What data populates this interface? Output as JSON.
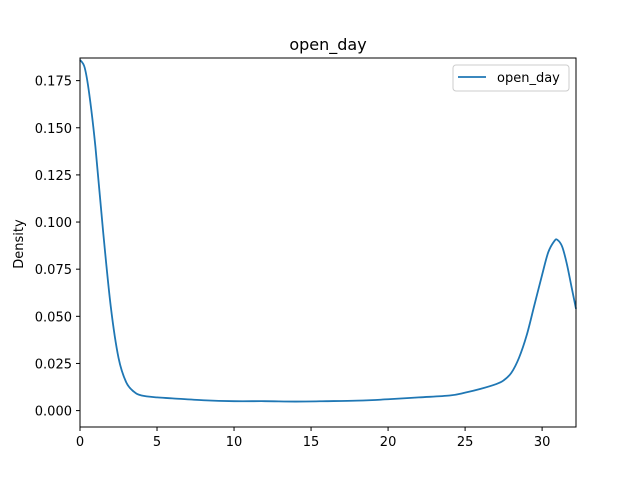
{
  "chart_data": {
    "type": "line",
    "title": "open_day",
    "xlabel": "",
    "ylabel": "Density",
    "xlim": [
      0,
      32.2
    ],
    "ylim": [
      -0.0087,
      0.187
    ],
    "xticks": [
      0,
      5,
      10,
      15,
      20,
      25,
      30
    ],
    "xtick_labels": [
      "0",
      "5",
      "10",
      "15",
      "20",
      "25",
      "30"
    ],
    "yticks": [
      0.0,
      0.025,
      0.05,
      0.075,
      0.1,
      0.125,
      0.15,
      0.175
    ],
    "ytick_labels": [
      "0.000",
      "0.025",
      "0.050",
      "0.075",
      "0.100",
      "0.125",
      "0.150",
      "0.175"
    ],
    "grid": false,
    "legend_position": "top-right",
    "series": [
      {
        "name": "open_day",
        "color": "#1f77b4",
        "x": [
          0,
          0.3,
          0.6,
          1.0,
          1.5,
          2.0,
          2.5,
          3.0,
          3.5,
          4.0,
          5.0,
          6.0,
          8.0,
          10.0,
          12.0,
          14.0,
          16.0,
          18.0,
          20.0,
          22.0,
          24.0,
          25.0,
          26.0,
          27.0,
          27.5,
          28.0,
          28.5,
          29.0,
          29.5,
          30.0,
          30.4,
          30.8,
          31.0,
          31.3,
          31.6,
          31.9,
          32.2
        ],
        "y": [
          0.186,
          0.182,
          0.168,
          0.14,
          0.095,
          0.055,
          0.028,
          0.015,
          0.01,
          0.008,
          0.007,
          0.0065,
          0.0055,
          0.005,
          0.005,
          0.0048,
          0.005,
          0.0053,
          0.006,
          0.007,
          0.008,
          0.0095,
          0.0115,
          0.014,
          0.016,
          0.02,
          0.028,
          0.04,
          0.056,
          0.072,
          0.084,
          0.09,
          0.0905,
          0.087,
          0.078,
          0.066,
          0.054
        ]
      }
    ]
  }
}
